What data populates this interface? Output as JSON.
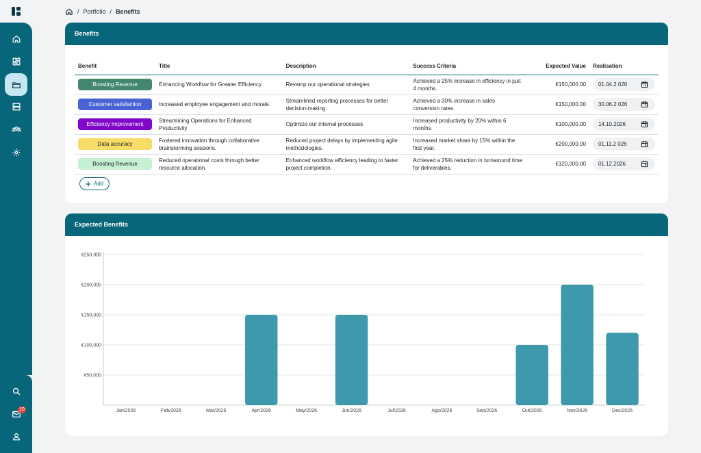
{
  "breadcrumb": {
    "portfolio": "Portfolio",
    "current": "Benefits",
    "sep": "/"
  },
  "sidebar": {
    "notifications_count": "10"
  },
  "benefits_card": {
    "title": "Benefits",
    "columns": {
      "benefit": "Benefit",
      "title": "Title",
      "description": "Description",
      "criteria": "Success Criteria",
      "value": "Expected Value",
      "realisation": "Realisation"
    },
    "rows": [
      {
        "benefit": "Boosting Revenue",
        "benefit_bg": "#43876e",
        "benefit_fg": "#ffffff",
        "title": "Enhancing Workflow for Greater Efficiency",
        "description": "Revamp our operational strategies",
        "criteria": "Achieved a 25% increase in efficiency in just 4 months.",
        "value": "€150,000.00",
        "realisation": "01.04.2 026"
      },
      {
        "benefit": "Customer satisfaction",
        "benefit_bg": "#4a62d6",
        "benefit_fg": "#ffffff",
        "title": "Increased employee engagement and morale.",
        "description": "Streamlined reporting processes for better decision-making.",
        "criteria": "Achieved a 30% increase in sales conversion rates.",
        "value": "€150,000.00",
        "realisation": "30.06.2 026"
      },
      {
        "benefit": "Efficiency Improvement",
        "benefit_bg": "#8106c9",
        "benefit_fg": "#ffffff",
        "title": "Streamlining Operations for Enhanced Productivity",
        "description": "Optimize our internal processes",
        "criteria": "Increased productivity by 20% within 6 months.",
        "value": "€100,000.00",
        "realisation": "14.10.2026"
      },
      {
        "benefit": "Data accuracy",
        "benefit_bg": "#f7dd67",
        "benefit_fg": "#1d2226",
        "title": "Fostered innovation through collaborative brainstorming sessions.",
        "description": "Reduced project delays by implementing agile methodologies.",
        "criteria": "Increased market share by 15% within the first year.",
        "value": "€200,000.00",
        "realisation": "01.11.2 026"
      },
      {
        "benefit": "Boosting Revenue",
        "benefit_bg": "#c6f0d2",
        "benefit_fg": "#1d2226",
        "title": "Reduced operational costs through better resource allocation.",
        "description": "Enhanced workflow efficiency leading to faster project completion.",
        "criteria": "Achieved a 25% reduction in turnaround time for deliverables.",
        "value": "€120,000.00",
        "realisation": "01.12.2026"
      }
    ],
    "add_label": "Add"
  },
  "chart_card": {
    "title": "Expected Benefits"
  },
  "chart_data": {
    "type": "bar",
    "title": "",
    "xlabel": "",
    "ylabel": "",
    "categories": [
      "Jan/2026",
      "Feb/2026",
      "Mar/2026",
      "Apr/2026",
      "May/2026",
      "Jun/2026",
      "Jul/2026",
      "Ago/2026",
      "Sep/2026",
      "Out/2026",
      "Nov/2026",
      "Dec/2026"
    ],
    "values": [
      0,
      0,
      0,
      150000,
      0,
      150000,
      0,
      0,
      0,
      100000,
      200000,
      120000
    ],
    "ylim": [
      0,
      250000
    ],
    "yticks": [
      50000,
      100000,
      150000,
      200000,
      250000
    ],
    "ytick_labels": [
      "€50,000",
      "€100,000",
      "€150,000",
      "€200,000",
      "€250,000"
    ],
    "grid": true,
    "bar_color": "#3f99ad"
  },
  "colors": {
    "primary": "#08667a",
    "active_nav": "#c5e7f1"
  }
}
